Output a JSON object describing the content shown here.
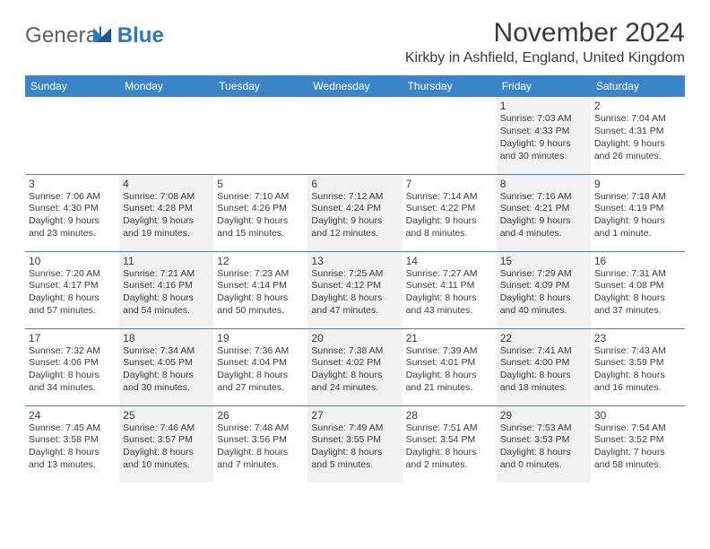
{
  "brand": {
    "part1": "General",
    "part2": "Blue"
  },
  "title": "November 2024",
  "location": "Kirkby in Ashfield, England, United Kingdom",
  "colors": {
    "header_bg": "#3b85c6",
    "header_text": "#ffffff",
    "brand_gray": "#5d6064",
    "brand_blue": "#2c79c0",
    "cell_border": "#3b85c6",
    "shaded_bg": "#f1f1f1",
    "text": "#3a3a3a"
  },
  "daylabels": [
    "Sunday",
    "Monday",
    "Tuesday",
    "Wednesday",
    "Thursday",
    "Friday",
    "Saturday"
  ],
  "weeks": [
    [
      {
        "n": "",
        "sr": "",
        "ss": "",
        "dl": "",
        "shaded": false
      },
      {
        "n": "",
        "sr": "",
        "ss": "",
        "dl": "",
        "shaded": true
      },
      {
        "n": "",
        "sr": "",
        "ss": "",
        "dl": "",
        "shaded": false
      },
      {
        "n": "",
        "sr": "",
        "ss": "",
        "dl": "",
        "shaded": true
      },
      {
        "n": "",
        "sr": "",
        "ss": "",
        "dl": "",
        "shaded": false
      },
      {
        "n": "1",
        "sr": "Sunrise: 7:03 AM",
        "ss": "Sunset: 4:33 PM",
        "dl": "Daylight: 9 hours and 30 minutes.",
        "shaded": true
      },
      {
        "n": "2",
        "sr": "Sunrise: 7:04 AM",
        "ss": "Sunset: 4:31 PM",
        "dl": "Daylight: 9 hours and 26 minutes.",
        "shaded": false
      }
    ],
    [
      {
        "n": "3",
        "sr": "Sunrise: 7:06 AM",
        "ss": "Sunset: 4:30 PM",
        "dl": "Daylight: 9 hours and 23 minutes.",
        "shaded": false
      },
      {
        "n": "4",
        "sr": "Sunrise: 7:08 AM",
        "ss": "Sunset: 4:28 PM",
        "dl": "Daylight: 9 hours and 19 minutes.",
        "shaded": true
      },
      {
        "n": "5",
        "sr": "Sunrise: 7:10 AM",
        "ss": "Sunset: 4:26 PM",
        "dl": "Daylight: 9 hours and 15 minutes.",
        "shaded": false
      },
      {
        "n": "6",
        "sr": "Sunrise: 7:12 AM",
        "ss": "Sunset: 4:24 PM",
        "dl": "Daylight: 9 hours and 12 minutes.",
        "shaded": true
      },
      {
        "n": "7",
        "sr": "Sunrise: 7:14 AM",
        "ss": "Sunset: 4:22 PM",
        "dl": "Daylight: 9 hours and 8 minutes.",
        "shaded": false
      },
      {
        "n": "8",
        "sr": "Sunrise: 7:16 AM",
        "ss": "Sunset: 4:21 PM",
        "dl": "Daylight: 9 hours and 4 minutes.",
        "shaded": true
      },
      {
        "n": "9",
        "sr": "Sunrise: 7:18 AM",
        "ss": "Sunset: 4:19 PM",
        "dl": "Daylight: 9 hours and 1 minute.",
        "shaded": false
      }
    ],
    [
      {
        "n": "10",
        "sr": "Sunrise: 7:20 AM",
        "ss": "Sunset: 4:17 PM",
        "dl": "Daylight: 8 hours and 57 minutes.",
        "shaded": false
      },
      {
        "n": "11",
        "sr": "Sunrise: 7:21 AM",
        "ss": "Sunset: 4:16 PM",
        "dl": "Daylight: 8 hours and 54 minutes.",
        "shaded": true
      },
      {
        "n": "12",
        "sr": "Sunrise: 7:23 AM",
        "ss": "Sunset: 4:14 PM",
        "dl": "Daylight: 8 hours and 50 minutes.",
        "shaded": false
      },
      {
        "n": "13",
        "sr": "Sunrise: 7:25 AM",
        "ss": "Sunset: 4:12 PM",
        "dl": "Daylight: 8 hours and 47 minutes.",
        "shaded": true
      },
      {
        "n": "14",
        "sr": "Sunrise: 7:27 AM",
        "ss": "Sunset: 4:11 PM",
        "dl": "Daylight: 8 hours and 43 minutes.",
        "shaded": false
      },
      {
        "n": "15",
        "sr": "Sunrise: 7:29 AM",
        "ss": "Sunset: 4:09 PM",
        "dl": "Daylight: 8 hours and 40 minutes.",
        "shaded": true
      },
      {
        "n": "16",
        "sr": "Sunrise: 7:31 AM",
        "ss": "Sunset: 4:08 PM",
        "dl": "Daylight: 8 hours and 37 minutes.",
        "shaded": false
      }
    ],
    [
      {
        "n": "17",
        "sr": "Sunrise: 7:32 AM",
        "ss": "Sunset: 4:06 PM",
        "dl": "Daylight: 8 hours and 34 minutes.",
        "shaded": false
      },
      {
        "n": "18",
        "sr": "Sunrise: 7:34 AM",
        "ss": "Sunset: 4:05 PM",
        "dl": "Daylight: 8 hours and 30 minutes.",
        "shaded": true
      },
      {
        "n": "19",
        "sr": "Sunrise: 7:36 AM",
        "ss": "Sunset: 4:04 PM",
        "dl": "Daylight: 8 hours and 27 minutes.",
        "shaded": false
      },
      {
        "n": "20",
        "sr": "Sunrise: 7:38 AM",
        "ss": "Sunset: 4:02 PM",
        "dl": "Daylight: 8 hours and 24 minutes.",
        "shaded": true
      },
      {
        "n": "21",
        "sr": "Sunrise: 7:39 AM",
        "ss": "Sunset: 4:01 PM",
        "dl": "Daylight: 8 hours and 21 minutes.",
        "shaded": false
      },
      {
        "n": "22",
        "sr": "Sunrise: 7:41 AM",
        "ss": "Sunset: 4:00 PM",
        "dl": "Daylight: 8 hours and 18 minutes.",
        "shaded": true
      },
      {
        "n": "23",
        "sr": "Sunrise: 7:43 AM",
        "ss": "Sunset: 3:59 PM",
        "dl": "Daylight: 8 hours and 16 minutes.",
        "shaded": false
      }
    ],
    [
      {
        "n": "24",
        "sr": "Sunrise: 7:45 AM",
        "ss": "Sunset: 3:58 PM",
        "dl": "Daylight: 8 hours and 13 minutes.",
        "shaded": false
      },
      {
        "n": "25",
        "sr": "Sunrise: 7:46 AM",
        "ss": "Sunset: 3:57 PM",
        "dl": "Daylight: 8 hours and 10 minutes.",
        "shaded": true
      },
      {
        "n": "26",
        "sr": "Sunrise: 7:48 AM",
        "ss": "Sunset: 3:56 PM",
        "dl": "Daylight: 8 hours and 7 minutes.",
        "shaded": false
      },
      {
        "n": "27",
        "sr": "Sunrise: 7:49 AM",
        "ss": "Sunset: 3:55 PM",
        "dl": "Daylight: 8 hours and 5 minutes.",
        "shaded": true
      },
      {
        "n": "28",
        "sr": "Sunrise: 7:51 AM",
        "ss": "Sunset: 3:54 PM",
        "dl": "Daylight: 8 hours and 2 minutes.",
        "shaded": false
      },
      {
        "n": "29",
        "sr": "Sunrise: 7:53 AM",
        "ss": "Sunset: 3:53 PM",
        "dl": "Daylight: 8 hours and 0 minutes.",
        "shaded": true
      },
      {
        "n": "30",
        "sr": "Sunrise: 7:54 AM",
        "ss": "Sunset: 3:52 PM",
        "dl": "Daylight: 7 hours and 58 minutes.",
        "shaded": false
      }
    ]
  ]
}
